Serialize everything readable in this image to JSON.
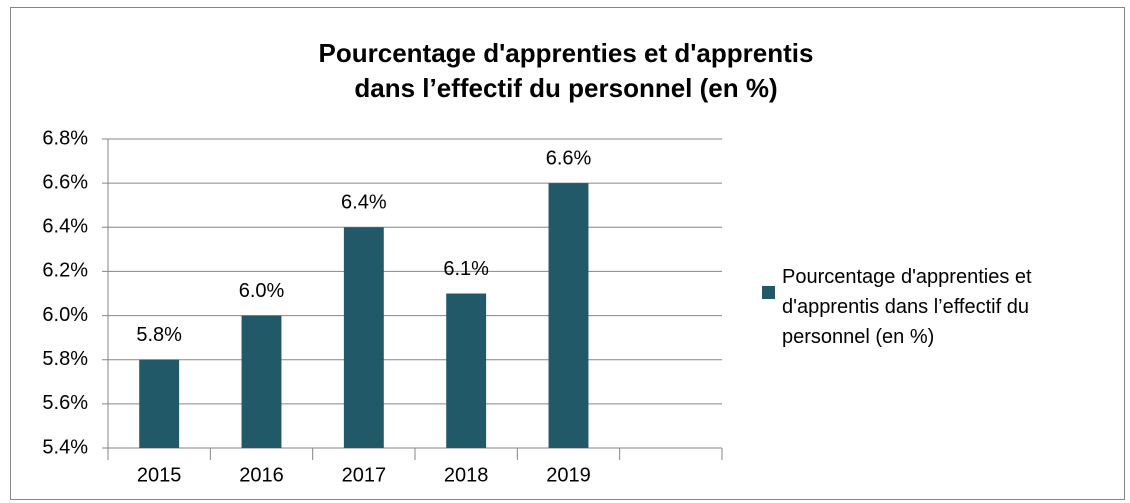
{
  "chart_data": {
    "type": "bar",
    "title": [
      "Pourcentage d'apprenties et d'apprentis",
      "dans l’effectif du personnel (en %)"
    ],
    "categories": [
      "2015",
      "2016",
      "2017",
      "2018",
      "2019",
      null
    ],
    "series": [
      {
        "name": "Pourcentage d'apprenties et d'apprentis dans l’effectif du personnel (en %)",
        "color": "#215968",
        "values": [
          5.8,
          6.0,
          6.4,
          6.1,
          6.6,
          null
        ],
        "value_labels": [
          "5.8%",
          "6.0%",
          "6.4%",
          "6.1%",
          "6.6%",
          null
        ]
      }
    ],
    "ylim": [
      5.4,
      6.8
    ],
    "yticks": [
      {
        "value": 5.4,
        "label": "5.4%"
      },
      {
        "value": 5.6,
        "label": "5.6%"
      },
      {
        "value": 5.8,
        "label": "5.8%"
      },
      {
        "value": 6.0,
        "label": "6.0%"
      },
      {
        "value": 6.2,
        "label": "6.2%"
      },
      {
        "value": 6.4,
        "label": "6.4%"
      },
      {
        "value": 6.6,
        "label": "6.6%"
      },
      {
        "value": 6.8,
        "label": "6.8%"
      }
    ],
    "grid": true,
    "legend": "right"
  }
}
